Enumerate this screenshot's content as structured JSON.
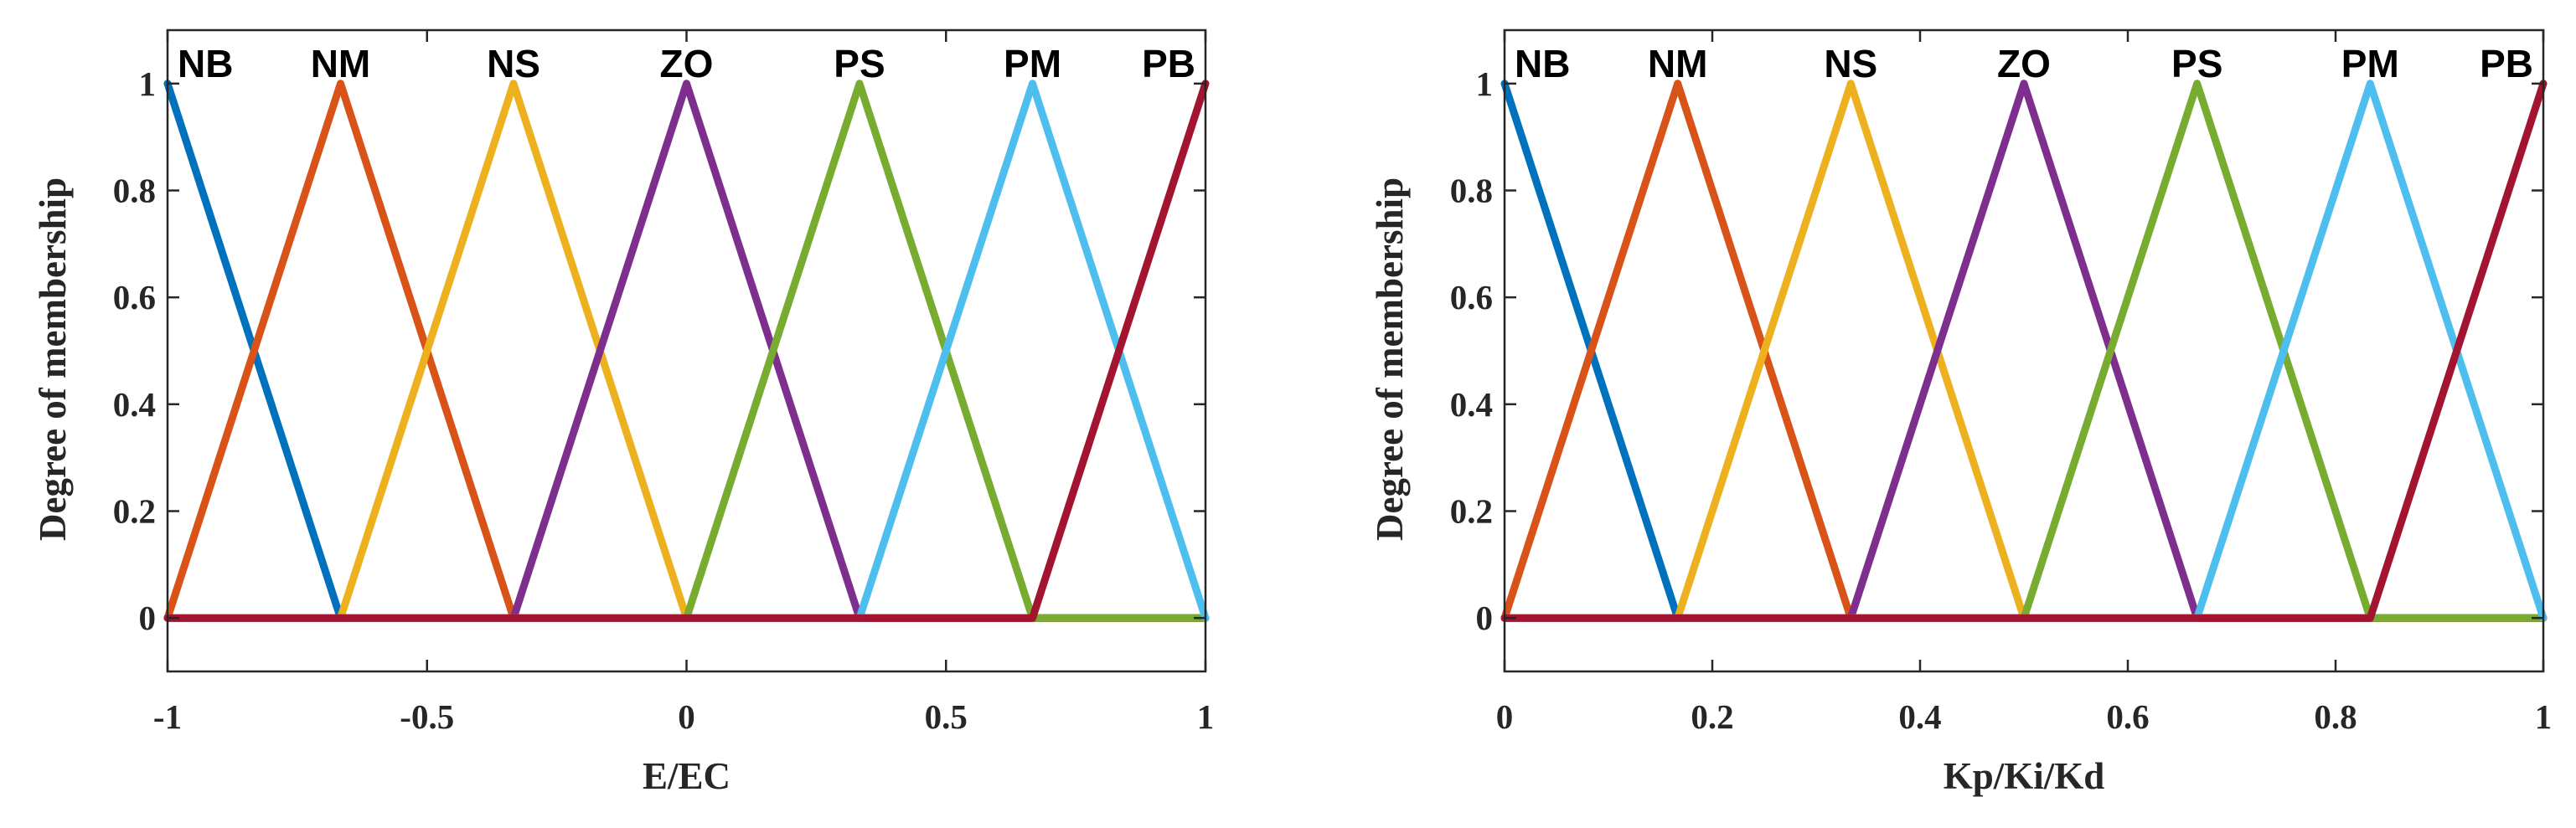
{
  "chart_data": [
    {
      "type": "line",
      "title": "",
      "xlabel": "E/EC",
      "ylabel": "Degree of membership",
      "xlim": [
        -1,
        1
      ],
      "ylim": [
        -0.1,
        1.1
      ],
      "x_ticks": [
        "-1",
        "-0.5",
        "0",
        "0.5",
        "1"
      ],
      "x_tick_values": [
        -1,
        -0.5,
        0,
        0.5,
        1
      ],
      "y_ticks": [
        "0",
        "0.2",
        "0.4",
        "0.6",
        "0.8",
        "1"
      ],
      "y_tick_values": [
        0,
        0.2,
        0.4,
        0.6,
        0.8,
        1
      ],
      "grid": false,
      "series": [
        {
          "name": "NB",
          "color": "#0072BD",
          "x": [
            -1,
            -0.6667,
            1
          ],
          "y": [
            1,
            0,
            0
          ]
        },
        {
          "name": "NM",
          "color": "#D95319",
          "x": [
            -1,
            -0.6667,
            -0.3333,
            1
          ],
          "y": [
            0,
            1,
            0,
            0
          ]
        },
        {
          "name": "NS",
          "color": "#EDB120",
          "x": [
            -1,
            -0.6667,
            -0.3333,
            0,
            1
          ],
          "y": [
            0,
            0,
            1,
            0,
            0
          ]
        },
        {
          "name": "ZO",
          "color": "#7E2F8E",
          "x": [
            -1,
            -0.3333,
            0,
            0.3333,
            1
          ],
          "y": [
            0,
            0,
            1,
            0,
            0
          ]
        },
        {
          "name": "PS",
          "color": "#77AC30",
          "x": [
            -1,
            0,
            0.3333,
            0.6667,
            1
          ],
          "y": [
            0,
            0,
            1,
            0,
            0
          ]
        },
        {
          "name": "PM",
          "color": "#4DBEEE",
          "x": [
            -1,
            0.3333,
            0.6667,
            1
          ],
          "y": [
            0,
            0,
            1,
            0
          ]
        },
        {
          "name": "PB",
          "color": "#A2142F",
          "x": [
            -1,
            0.6667,
            1
          ],
          "y": [
            0,
            0,
            1
          ]
        }
      ]
    },
    {
      "type": "line",
      "title": "",
      "xlabel": "Kp/Ki/Kd",
      "ylabel": "Degree of membership",
      "xlim": [
        0,
        1
      ],
      "ylim": [
        -0.1,
        1.1
      ],
      "x_ticks": [
        "0",
        "0.2",
        "0.4",
        "0.6",
        "0.8",
        "1"
      ],
      "x_tick_values": [
        0,
        0.2,
        0.4,
        0.6,
        0.8,
        1
      ],
      "y_ticks": [
        "0",
        "0.2",
        "0.4",
        "0.6",
        "0.8",
        "1"
      ],
      "y_tick_values": [
        0,
        0.2,
        0.4,
        0.6,
        0.8,
        1
      ],
      "grid": false,
      "series": [
        {
          "name": "NB",
          "color": "#0072BD",
          "x": [
            0,
            0.1667,
            1
          ],
          "y": [
            1,
            0,
            0
          ]
        },
        {
          "name": "NM",
          "color": "#D95319",
          "x": [
            0,
            0.1667,
            0.3333,
            1
          ],
          "y": [
            0,
            1,
            0,
            0
          ]
        },
        {
          "name": "NS",
          "color": "#EDB120",
          "x": [
            0,
            0.1667,
            0.3333,
            0.5,
            1
          ],
          "y": [
            0,
            0,
            1,
            0,
            0
          ]
        },
        {
          "name": "ZO",
          "color": "#7E2F8E",
          "x": [
            0,
            0.3333,
            0.5,
            0.6667,
            1
          ],
          "y": [
            0,
            0,
            1,
            0,
            0
          ]
        },
        {
          "name": "PS",
          "color": "#77AC30",
          "x": [
            0,
            0.5,
            0.6667,
            0.8333,
            1
          ],
          "y": [
            0,
            0,
            1,
            0,
            0
          ]
        },
        {
          "name": "PM",
          "color": "#4DBEEE",
          "x": [
            0,
            0.6667,
            0.8333,
            1
          ],
          "y": [
            0,
            0,
            1,
            0
          ]
        },
        {
          "name": "PB",
          "color": "#A2142F",
          "x": [
            0,
            0.8333,
            1
          ],
          "y": [
            0,
            0,
            1
          ]
        }
      ]
    }
  ]
}
